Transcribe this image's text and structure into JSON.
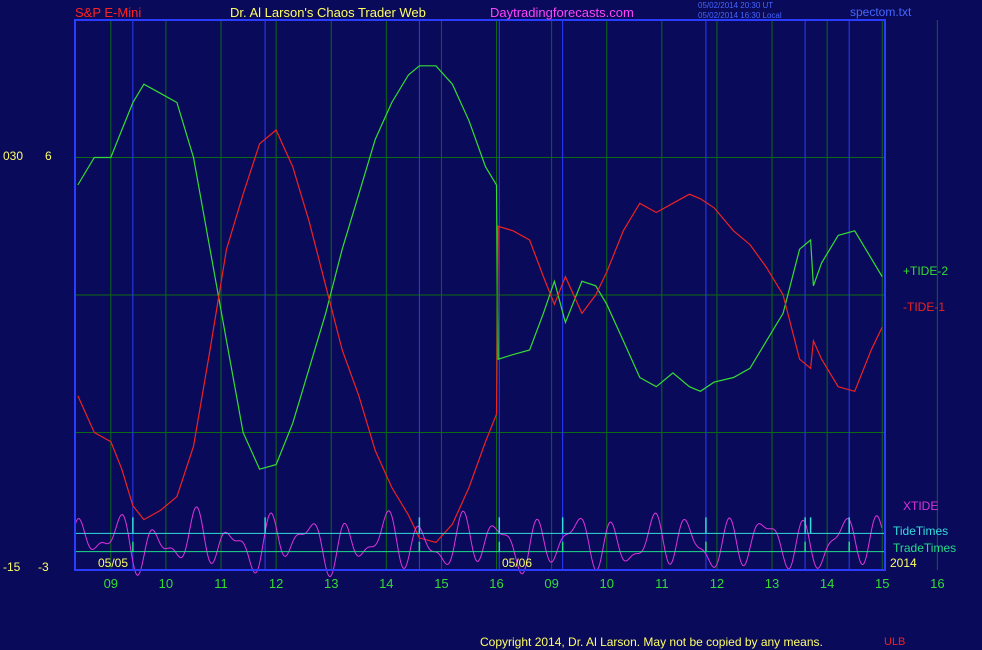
{
  "header": {
    "symbol": "S&P E-Mini",
    "author": "Dr. Al Larson's Chaos Trader Web",
    "site": "Daytradingforecasts.com",
    "stamp_ut": "05/02/2014 20:30 UT",
    "stamp_local": "05/02/2014 16:30 Local",
    "file": "spectom.txt"
  },
  "left_axis": {
    "top_labels": [
      "030",
      "6"
    ],
    "bottom_labels": [
      "-15",
      "-3"
    ]
  },
  "footer": {
    "copyright": "Copyright 2014, Dr. Al Larson. May not be copied by any means.",
    "badge": "ULB"
  },
  "colors": {
    "background": "#0a0a5a",
    "frame": "#2a3cff",
    "grid": "#0d6a14",
    "tide2": "#33dd33",
    "tide1": "#ee2222",
    "xtide": "#dd33dd",
    "tide_times": "#33dddd",
    "trade_times": "#22dd88",
    "header_red": "#ff2222",
    "header_yellow": "#ffff66",
    "header_magenta": "#ff44ff",
    "stamp_blue": "#4466ff",
    "axis_green": "#33dd33"
  },
  "chart_data": {
    "type": "line",
    "x_unit": "hour",
    "dates": [
      {
        "label": "05/05",
        "hour": 9
      },
      {
        "label": "05/06",
        "hour": 16
      }
    ],
    "x_tick_labels": [
      "09",
      "10",
      "11",
      "12",
      "13",
      "14",
      "15",
      "16",
      "09",
      "10",
      "11",
      "12",
      "13",
      "14",
      "15",
      "16"
    ],
    "year_label": "2014",
    "y_range": [
      -3,
      9
    ],
    "y_tick_values": [
      -3,
      0,
      3,
      6
    ],
    "series": [
      {
        "name": "+TIDE-2",
        "color": "#33dd33",
        "points": [
          [
            8.4,
            5.4
          ],
          [
            8.7,
            6.0
          ],
          [
            9.0,
            6.0
          ],
          [
            9.2,
            6.6
          ],
          [
            9.4,
            7.2
          ],
          [
            9.6,
            7.6
          ],
          [
            9.9,
            7.4
          ],
          [
            10.2,
            7.2
          ],
          [
            10.5,
            6.0
          ],
          [
            10.8,
            4.0
          ],
          [
            11.1,
            2.0
          ],
          [
            11.4,
            0.0
          ],
          [
            11.7,
            -0.8
          ],
          [
            12.0,
            -0.7
          ],
          [
            12.3,
            0.2
          ],
          [
            12.6,
            1.4
          ],
          [
            12.9,
            2.6
          ],
          [
            13.2,
            4.0
          ],
          [
            13.5,
            5.2
          ],
          [
            13.8,
            6.4
          ],
          [
            14.1,
            7.2
          ],
          [
            14.4,
            7.8
          ],
          [
            14.6,
            8.0
          ],
          [
            14.9,
            8.0
          ],
          [
            15.2,
            7.6
          ],
          [
            15.5,
            6.8
          ],
          [
            15.8,
            5.8
          ],
          [
            16.0,
            5.4
          ],
          [
            16.03,
            1.6
          ],
          [
            16.3,
            1.7
          ],
          [
            16.6,
            1.8
          ],
          [
            16.85,
            2.6
          ],
          [
            17.05,
            3.3
          ],
          [
            17.25,
            2.4
          ],
          [
            17.55,
            3.3
          ],
          [
            17.8,
            3.2
          ],
          [
            18.0,
            2.8
          ],
          [
            18.3,
            2.0
          ],
          [
            18.6,
            1.2
          ],
          [
            18.9,
            1.0
          ],
          [
            19.2,
            1.3
          ],
          [
            19.5,
            1.0
          ],
          [
            19.7,
            0.9
          ],
          [
            19.95,
            1.1
          ],
          [
            20.3,
            1.2
          ],
          [
            20.6,
            1.4
          ],
          [
            20.9,
            2.0
          ],
          [
            21.2,
            2.6
          ],
          [
            21.5,
            4.0
          ],
          [
            21.7,
            4.2
          ],
          [
            21.75,
            3.2
          ],
          [
            21.9,
            3.7
          ],
          [
            22.2,
            4.3
          ],
          [
            22.5,
            4.4
          ],
          [
            22.8,
            3.8
          ],
          [
            23.0,
            3.4
          ]
        ]
      },
      {
        "name": "-TIDE-1",
        "color": "#ee2222",
        "points": [
          [
            8.4,
            0.8
          ],
          [
            8.7,
            0.0
          ],
          [
            9.0,
            -0.2
          ],
          [
            9.2,
            -0.8
          ],
          [
            9.4,
            -1.6
          ],
          [
            9.6,
            -1.9
          ],
          [
            9.9,
            -1.7
          ],
          [
            10.2,
            -1.4
          ],
          [
            10.5,
            -0.3
          ],
          [
            10.8,
            1.8
          ],
          [
            11.1,
            4.0
          ],
          [
            11.4,
            5.2
          ],
          [
            11.7,
            6.3
          ],
          [
            12.0,
            6.6
          ],
          [
            12.3,
            5.8
          ],
          [
            12.6,
            4.6
          ],
          [
            12.9,
            3.2
          ],
          [
            13.2,
            1.8
          ],
          [
            13.5,
            0.8
          ],
          [
            13.8,
            -0.4
          ],
          [
            14.1,
            -1.2
          ],
          [
            14.4,
            -1.8
          ],
          [
            14.6,
            -2.3
          ],
          [
            14.9,
            -2.4
          ],
          [
            15.2,
            -2.0
          ],
          [
            15.5,
            -1.2
          ],
          [
            15.8,
            -0.2
          ],
          [
            16.0,
            0.4
          ],
          [
            16.03,
            4.5
          ],
          [
            16.3,
            4.4
          ],
          [
            16.6,
            4.2
          ],
          [
            16.85,
            3.4
          ],
          [
            17.05,
            2.8
          ],
          [
            17.25,
            3.4
          ],
          [
            17.55,
            2.6
          ],
          [
            17.8,
            3.0
          ],
          [
            18.0,
            3.5
          ],
          [
            18.3,
            4.4
          ],
          [
            18.6,
            5.0
          ],
          [
            18.9,
            4.8
          ],
          [
            19.2,
            5.0
          ],
          [
            19.5,
            5.2
          ],
          [
            19.7,
            5.1
          ],
          [
            19.95,
            4.9
          ],
          [
            20.3,
            4.4
          ],
          [
            20.6,
            4.1
          ],
          [
            20.9,
            3.6
          ],
          [
            21.2,
            3.0
          ],
          [
            21.5,
            1.6
          ],
          [
            21.7,
            1.4
          ],
          [
            21.75,
            2.0
          ],
          [
            21.9,
            1.6
          ],
          [
            22.2,
            1.0
          ],
          [
            22.5,
            0.9
          ],
          [
            22.8,
            1.8
          ],
          [
            23.0,
            2.3
          ]
        ]
      }
    ],
    "xtide_label": "XTIDE",
    "xtide_range": [
      -3.2,
      -1.6
    ],
    "tide_times_label": "TideTimes",
    "tide_times_level": -2.2,
    "tide_times_spikes": [
      9.4,
      11.8,
      14.6,
      16.05,
      17.2,
      19.8,
      21.6,
      21.7,
      22.4
    ],
    "trade_times_label": "TradeTimes",
    "trade_times_level": -2.6,
    "trade_times_spikes": [
      9.4,
      14.6,
      16.05,
      17.2,
      19.8,
      21.6,
      22.4
    ],
    "vertical_markers": [
      9.4,
      11.8,
      14.6,
      16.05,
      17.2,
      19.8,
      21.6,
      22.4
    ],
    "grid": true
  }
}
